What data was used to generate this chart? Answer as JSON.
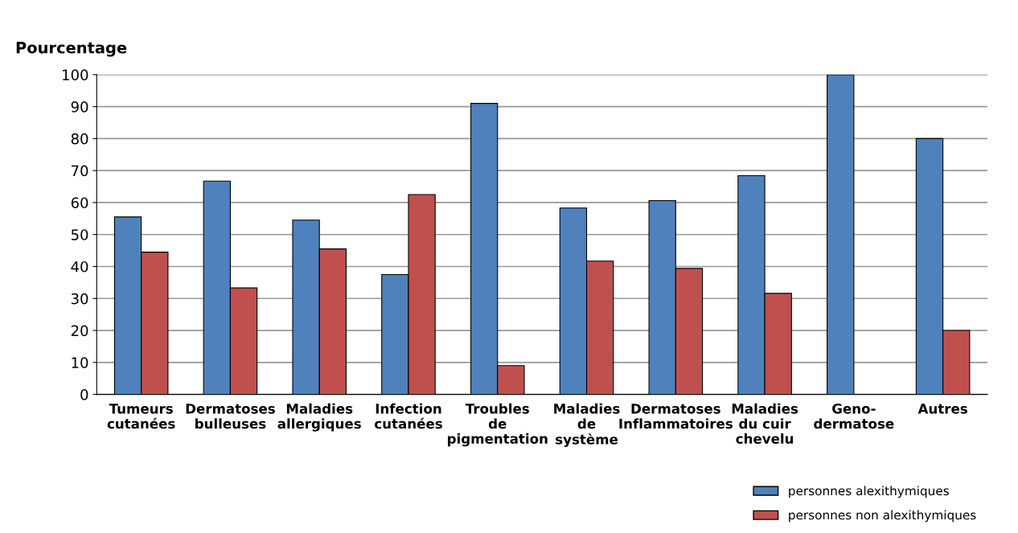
{
  "chart_data": {
    "type": "bar",
    "ylabel": "Pourcentage",
    "categories": [
      "Tumeurs\ncutanées",
      "Dermatoses\nbulleuses",
      "Maladies\nallergiques",
      "Infection\ncutanées",
      "Troubles\nde\npigmentation",
      "Maladies\nde\nsystème",
      "Dermatoses\nInflammatoires",
      "Maladies\ndu cuir\nchevelu",
      "Geno-\ndermatose",
      "Autres"
    ],
    "series": [
      {
        "name": "personnes alexithymiques",
        "color": "#4f81bd",
        "values": [
          55.5,
          66.7,
          54.5,
          37.5,
          91,
          58.3,
          60.6,
          68.4,
          100,
          80
        ]
      },
      {
        "name": "personnes non alexithymiques",
        "color": "#c0504d",
        "values": [
          44.5,
          33.3,
          45.5,
          62.5,
          9,
          41.7,
          39.4,
          31.6,
          null,
          20
        ]
      }
    ],
    "ylim": [
      0,
      100
    ],
    "yticks": [
      0,
      10,
      20,
      30,
      40,
      50,
      60,
      70,
      80,
      90,
      100
    ],
    "grid": "y",
    "legend": "bottom right"
  }
}
